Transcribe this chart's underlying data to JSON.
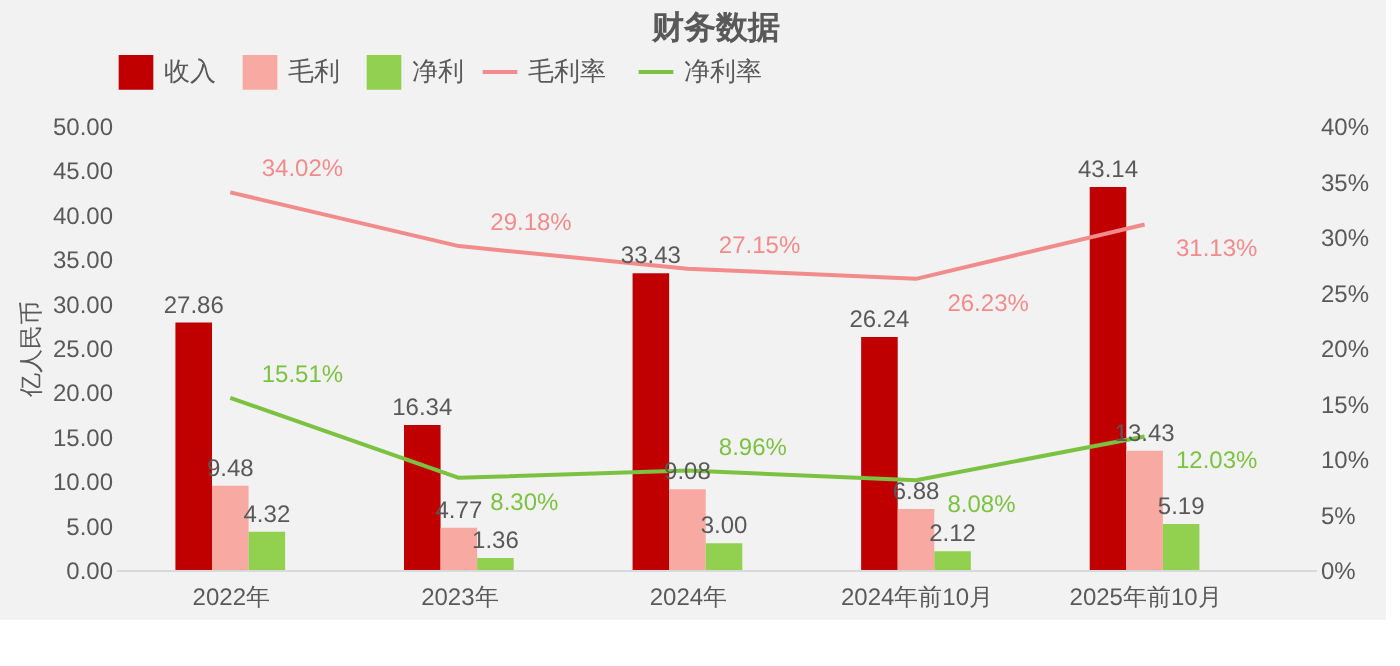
{
  "chart_data": {
    "type": "bar",
    "title": "财务数据",
    "ylabel": "亿人民币",
    "categories": [
      "2022年",
      "2023年",
      "2024年",
      "2024年前10月",
      "2025年前10月"
    ],
    "series": [
      {
        "name": "收入",
        "color": "#c00000",
        "values": [
          27.86,
          16.34,
          33.43,
          26.24,
          43.14
        ],
        "value_labels": [
          "27.86",
          "16.34",
          "33.43",
          "26.24",
          "43.14"
        ]
      },
      {
        "name": "毛利",
        "color": "#f8aaa2",
        "values": [
          9.48,
          4.77,
          9.08,
          6.88,
          13.43
        ],
        "value_labels": [
          "9.48",
          "4.77",
          "9.08",
          "6.88",
          "13.43"
        ]
      },
      {
        "name": "净利",
        "color": "#92d050",
        "values": [
          4.32,
          1.36,
          3.0,
          2.12,
          5.19
        ],
        "value_labels": [
          "4.32",
          "1.36",
          "3.00",
          "2.12",
          "5.19"
        ]
      },
      {
        "name": "毛利率",
        "type": "line",
        "axis": "y2",
        "color": "#f28b8b",
        "values": [
          34.02,
          29.18,
          27.15,
          26.23,
          31.13
        ],
        "value_labels": [
          "34.02%",
          "29.18%",
          "27.15%",
          "26.23%",
          "31.13%"
        ]
      },
      {
        "name": "净利率",
        "type": "line",
        "axis": "y2",
        "color": "#7cc242",
        "values": [
          15.51,
          8.3,
          8.96,
          8.08,
          12.03
        ],
        "value_labels": [
          "15.51%",
          "8.30%",
          "8.96%",
          "8.08%",
          "12.03%"
        ]
      }
    ],
    "ylim": [
      0,
      50
    ],
    "yticks": [
      {
        "value": 0,
        "label": "0.00"
      },
      {
        "value": 5,
        "label": "5.00"
      },
      {
        "value": 10,
        "label": "10.00"
      },
      {
        "value": 15,
        "label": "15.00"
      },
      {
        "value": 20,
        "label": "20.00"
      },
      {
        "value": 25,
        "label": "25.00"
      },
      {
        "value": 30,
        "label": "30.00"
      },
      {
        "value": 35,
        "label": "35.00"
      },
      {
        "value": 40,
        "label": "40.00"
      },
      {
        "value": 45,
        "label": "45.00"
      },
      {
        "value": 50,
        "label": "50.00"
      }
    ],
    "y2lim": [
      0,
      40
    ],
    "y2ticks": [
      {
        "value": 0,
        "label": "0%"
      },
      {
        "value": 5,
        "label": "5%"
      },
      {
        "value": 10,
        "label": "10%"
      },
      {
        "value": 15,
        "label": "15%"
      },
      {
        "value": 20,
        "label": "20%"
      },
      {
        "value": 25,
        "label": "25%"
      },
      {
        "value": 30,
        "label": "30%"
      },
      {
        "value": 35,
        "label": "35%"
      },
      {
        "value": 40,
        "label": "40%"
      }
    ],
    "grid": false,
    "legend": "top"
  }
}
